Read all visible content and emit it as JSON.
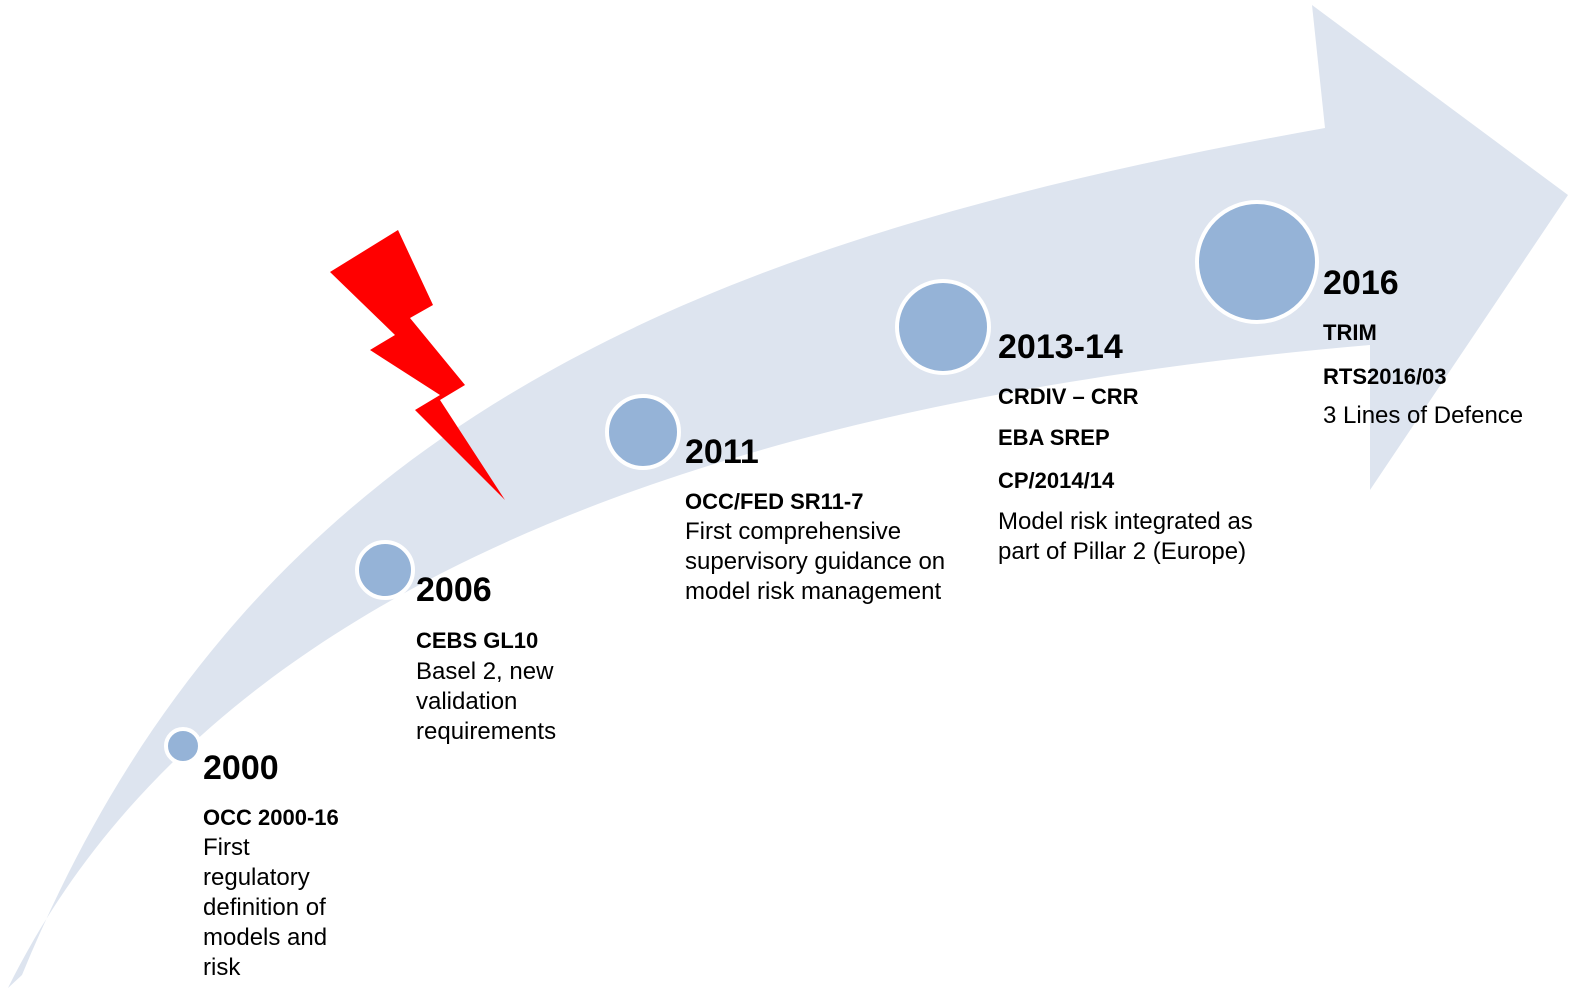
{
  "milestones": [
    {
      "year": "2000",
      "items": [
        "OCC 2000-16"
      ],
      "description": "First regulatory definition of models and risk"
    },
    {
      "year": "2006",
      "items": [
        "CEBS GL10"
      ],
      "description": "Basel 2, new validation requirements"
    },
    {
      "year": "2011",
      "items": [
        "OCC/FED SR11-7"
      ],
      "description": "First comprehensive supervisory guidance on model risk management"
    },
    {
      "year": "2013-14",
      "items": [
        "CRDIV – CRR",
        "EBA SREP",
        "CP/2014/14"
      ],
      "description": "Model risk integrated as part of Pillar 2 (Europe)"
    },
    {
      "year": "2016",
      "items": [
        "TRIM",
        "RTS2016/03"
      ],
      "description": "3 Lines of Defence"
    }
  ]
}
